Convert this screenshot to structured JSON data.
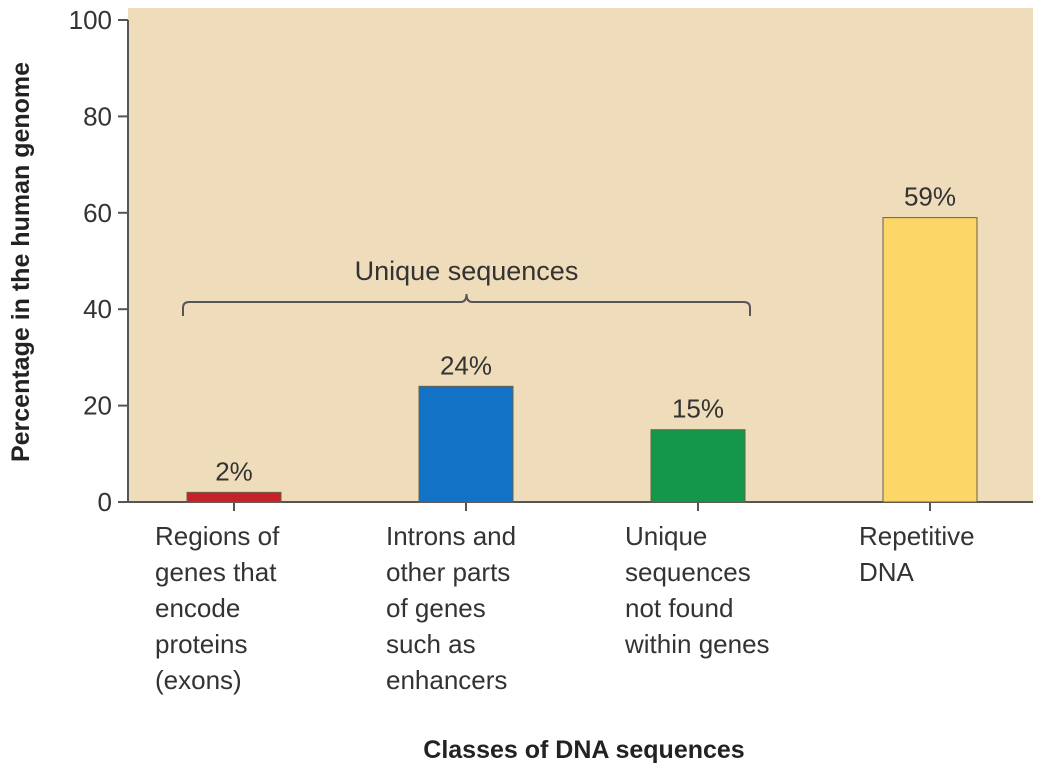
{
  "chart_data": {
    "type": "bar",
    "categories": [
      "Regions of genes that encode proteins (exons)",
      "Introns and other parts of genes such as enhancers",
      "Unique sequences not found within genes",
      "Repetitive DNA"
    ],
    "category_lines": [
      [
        "Regions of",
        "genes that",
        "encode",
        "proteins",
        "(exons)"
      ],
      [
        "Introns and",
        "other parts",
        "of genes",
        "such as",
        "enhancers"
      ],
      [
        "Unique",
        "sequences",
        "not found",
        "within genes"
      ],
      [
        "Repetitive",
        "DNA"
      ]
    ],
    "values": [
      2,
      24,
      15,
      59
    ],
    "data_labels": [
      "2%",
      "24%",
      "15%",
      "59%"
    ],
    "bar_colors": [
      "#c8202a",
      "#1273c6",
      "#14974a",
      "#fdd668"
    ],
    "xlabel": "Classes of DNA sequences",
    "ylabel": "Percentage in the human genome",
    "ylim": [
      0,
      100
    ],
    "yticks": [
      0,
      20,
      40,
      60,
      80,
      100
    ],
    "grid": false,
    "annotations": [
      {
        "type": "brace",
        "text": "Unique sequences",
        "spans_categories": [
          0,
          1,
          2
        ]
      }
    ],
    "background_color": "#eedcbb",
    "axis_color": "#555555"
  }
}
